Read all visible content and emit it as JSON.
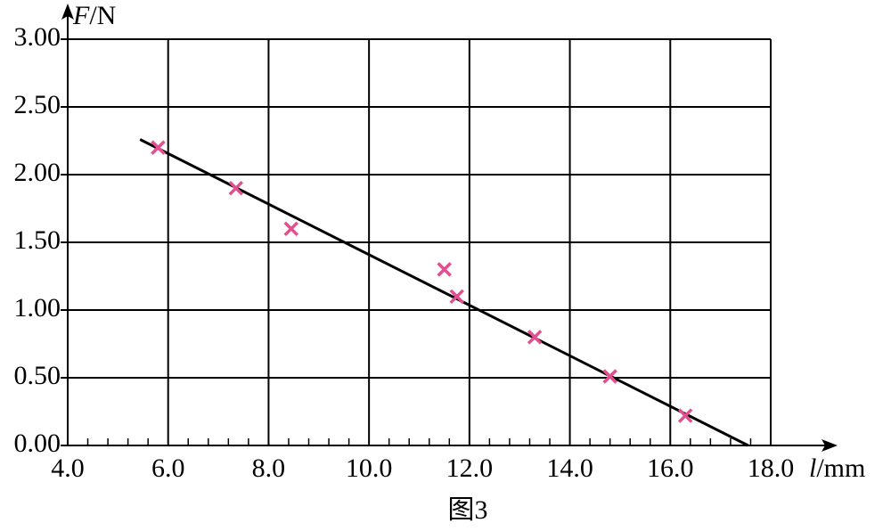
{
  "chart_data": {
    "type": "scatter",
    "x_label": {
      "symbol": "l",
      "unit": "/mm"
    },
    "y_label": {
      "symbol": "F",
      "unit": "/N"
    },
    "caption": "图3",
    "x": [
      5.8,
      7.35,
      8.45,
      11.5,
      11.75,
      13.3,
      14.8,
      16.3
    ],
    "values": [
      2.2,
      1.9,
      1.6,
      1.3,
      1.1,
      0.8,
      0.51,
      0.22
    ],
    "color": "#e0508f",
    "fit_line": {
      "x": [
        5.44,
        17.55
      ],
      "y": [
        2.26,
        0
      ],
      "color": "#000000"
    },
    "xlim": [
      4,
      18
    ],
    "ylim": [
      0,
      3
    ],
    "xticks": [
      {
        "value": 4,
        "label": "4.0"
      },
      {
        "value": 6,
        "label": "6.0"
      },
      {
        "value": 8,
        "label": "8.0"
      },
      {
        "value": 10,
        "label": "10.0"
      },
      {
        "value": 12,
        "label": "12.0"
      },
      {
        "value": 14,
        "label": "14.0"
      },
      {
        "value": 16,
        "label": "16.0"
      },
      {
        "value": 18,
        "label": "18.0"
      }
    ],
    "yticks": [
      {
        "value": 0,
        "label": "0.00"
      },
      {
        "value": 0.5,
        "label": "0.50"
      },
      {
        "value": 1,
        "label": "1.00"
      },
      {
        "value": 1.5,
        "label": "1.50"
      },
      {
        "value": 2,
        "label": "2.00"
      },
      {
        "value": 2.5,
        "label": "2.50"
      },
      {
        "value": 3,
        "label": "3.00"
      }
    ],
    "x_minor_divisions": 5,
    "grid": true
  }
}
